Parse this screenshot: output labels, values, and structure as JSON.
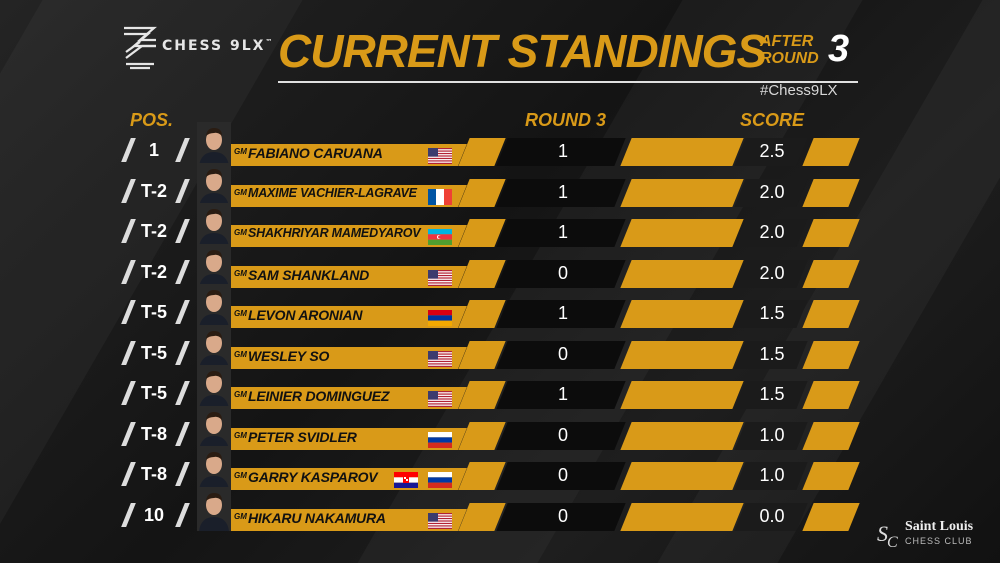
{
  "brand": {
    "logo_text": "CHESS 9LX",
    "logo_sup": "™"
  },
  "header": {
    "title": "CURRENT STANDINGS",
    "after_label_1": "AFTER",
    "after_label_2": "ROUND",
    "round": "3",
    "hashtag": "#Chess9LX"
  },
  "columns": {
    "pos": "POS.",
    "round": "ROUND 3",
    "score": "SCORE"
  },
  "title_prefix": "GM",
  "players": [
    {
      "pos": "1",
      "name": "FABIANO CARUANA",
      "flags": [
        "usa"
      ],
      "round": "1",
      "score": "2.5"
    },
    {
      "pos": "T-2",
      "name": "MAXIME VACHIER-LAGRAVE",
      "flags": [
        "france"
      ],
      "round": "1",
      "score": "2.0"
    },
    {
      "pos": "T-2",
      "name": "SHAKHRIYAR MAMEDYAROV",
      "flags": [
        "azerbaijan"
      ],
      "round": "1",
      "score": "2.0"
    },
    {
      "pos": "T-2",
      "name": "SAM SHANKLAND",
      "flags": [
        "usa"
      ],
      "round": "0",
      "score": "2.0"
    },
    {
      "pos": "T-5",
      "name": "LEVON ARONIAN",
      "flags": [
        "armenia"
      ],
      "round": "1",
      "score": "1.5"
    },
    {
      "pos": "T-5",
      "name": "WESLEY SO",
      "flags": [
        "usa"
      ],
      "round": "0",
      "score": "1.5"
    },
    {
      "pos": "T-5",
      "name": "LEINIER DOMINGUEZ",
      "flags": [
        "usa"
      ],
      "round": "1",
      "score": "1.5"
    },
    {
      "pos": "T-8",
      "name": "PETER SVIDLER",
      "flags": [
        "russia"
      ],
      "round": "0",
      "score": "1.0"
    },
    {
      "pos": "T-8",
      "name": "GARRY KASPAROV",
      "flags": [
        "croatia",
        "russia"
      ],
      "round": "0",
      "score": "1.0"
    },
    {
      "pos": "10",
      "name": "HIKARU NAKAMURA",
      "flags": [
        "usa"
      ],
      "round": "0",
      "score": "0.0"
    }
  ],
  "sponsor": {
    "line1": "Saint Louis",
    "line2": "CHESS CLUB"
  },
  "colors": {
    "accent": "#d99a18",
    "background": "#151515"
  }
}
